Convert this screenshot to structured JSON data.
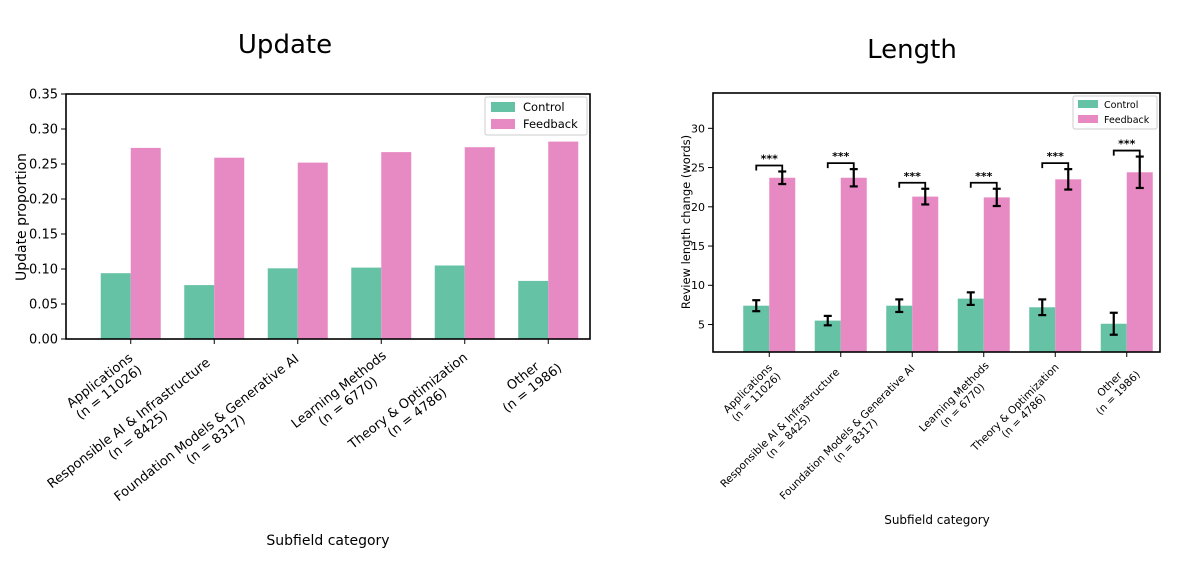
{
  "colors": {
    "control": "#66c2a5",
    "feedback": "#e78ac3"
  },
  "chart_data": [
    {
      "type": "bar",
      "title": "Update",
      "xlabel": "Subfield category",
      "ylabel": "Update proportion",
      "ylim": [
        0,
        0.35
      ],
      "yticks": [
        "0.00",
        "0.05",
        "0.10",
        "0.15",
        "0.20",
        "0.25",
        "0.30",
        "0.35"
      ],
      "categories": [
        [
          "Applications",
          "(n = 11026)"
        ],
        [
          "Responsible AI & Infrastructure",
          "(n = 8425)"
        ],
        [
          "Foundation Models & Generative AI",
          "(n = 8317)"
        ],
        [
          "Learning Methods",
          "(n = 6770)"
        ],
        [
          "Theory & Optimization",
          "(n = 4786)"
        ],
        [
          "Other",
          "(n = 1986)"
        ]
      ],
      "series": [
        {
          "name": "Control",
          "values": [
            0.094,
            0.077,
            0.101,
            0.102,
            0.105,
            0.083
          ]
        },
        {
          "name": "Feedback",
          "values": [
            0.273,
            0.259,
            0.252,
            0.267,
            0.274,
            0.282
          ]
        }
      ],
      "legend": "top-right"
    },
    {
      "type": "bar",
      "title": "Length",
      "xlabel": "Subfield category",
      "ylabel": "Review length change (words)",
      "ylim": [
        1.5,
        34.5
      ],
      "yticks": [
        "5",
        "10",
        "15",
        "20",
        "25",
        "30"
      ],
      "categories": [
        [
          "Applications",
          "(n = 11026)"
        ],
        [
          "Responsible AI & Infrastructure",
          "(n = 8425)"
        ],
        [
          "Foundation Models & Generative AI",
          "(n = 8317)"
        ],
        [
          "Learning Methods",
          "(n = 6770)"
        ],
        [
          "Theory & Optimization",
          "(n = 4786)"
        ],
        [
          "Other",
          "(n = 1986)"
        ]
      ],
      "series": [
        {
          "name": "Control",
          "values": [
            7.4,
            5.5,
            7.4,
            8.3,
            7.2,
            5.1
          ],
          "errors": [
            0.7,
            0.6,
            0.8,
            0.8,
            1.0,
            1.4
          ]
        },
        {
          "name": "Feedback",
          "values": [
            23.7,
            23.7,
            21.3,
            21.2,
            23.5,
            24.4
          ],
          "errors": [
            0.8,
            1.1,
            1.0,
            1.1,
            1.3,
            2.0
          ]
        }
      ],
      "significance": [
        "***",
        "***",
        "***",
        "***",
        "***",
        "***"
      ],
      "legend": "top-right"
    }
  ]
}
